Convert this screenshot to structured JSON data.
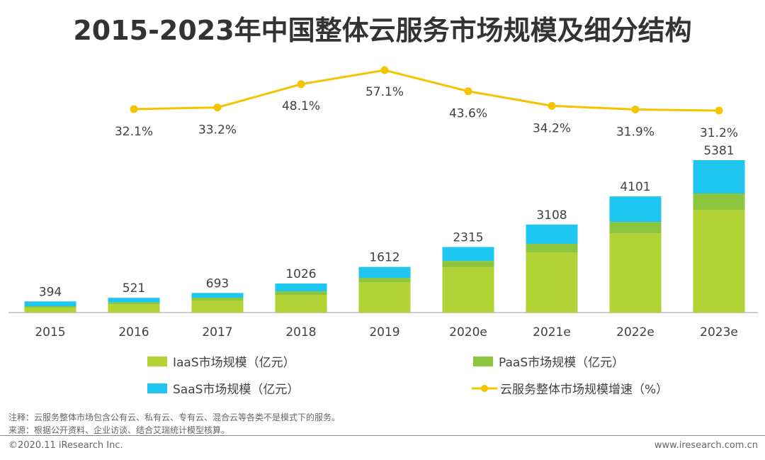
{
  "chart_data": {
    "type": "bar",
    "stacked": true,
    "title": "2015-2023年中国整体云服务市场规模及细分结构",
    "categories": [
      "2015",
      "2016",
      "2017",
      "2018",
      "2019",
      "2020e",
      "2021e",
      "2022e",
      "2023e"
    ],
    "totals": [
      "394",
      "521",
      "693",
      "1026",
      "1612",
      "2315",
      "3108",
      "4101",
      "5381"
    ],
    "series": [
      {
        "name": "IaaS市场规模（亿元）",
        "color": "#b2d235",
        "values": [
          175,
          300,
          425,
          625,
          1075,
          1600,
          2128,
          2800,
          3630
        ]
      },
      {
        "name": "PaaS市场规模（亿元）",
        "color": "#8cc63f",
        "values": [
          50,
          60,
          100,
          125,
          150,
          225,
          300,
          400,
          575
        ]
      },
      {
        "name": "SaaS市场规模（亿元）",
        "color": "#1fc6ef",
        "values": [
          169,
          161,
          168,
          276,
          387,
          490,
          680,
          901,
          1176
        ]
      }
    ],
    "line": {
      "name": "云服务整体市场规模增速（%）",
      "color": "#f5c400",
      "values": [
        32.1,
        33.2,
        48.1,
        57.1,
        43.6,
        34.2,
        31.9,
        31.2
      ],
      "labels": [
        "32.1%",
        "33.2%",
        "48.1%",
        "57.1%",
        "43.6%",
        "34.2%",
        "31.9%",
        "31.2%"
      ],
      "categories": [
        "2016",
        "2017",
        "2018",
        "2019",
        "2020e",
        "2021e",
        "2022e",
        "2023e"
      ]
    },
    "grid": false,
    "legend": "bottom"
  },
  "notes": {
    "note": "注释：云服务整体市场包含公有云、私有云、专有云、混合云等各类不是模式下的服务。",
    "source": "来源：根据公开资料、企业访谈、结合艾瑞统计模型核算。",
    "copyright": "©2020.11 iResearch Inc.",
    "website": "www.iresearch.com.cn"
  }
}
